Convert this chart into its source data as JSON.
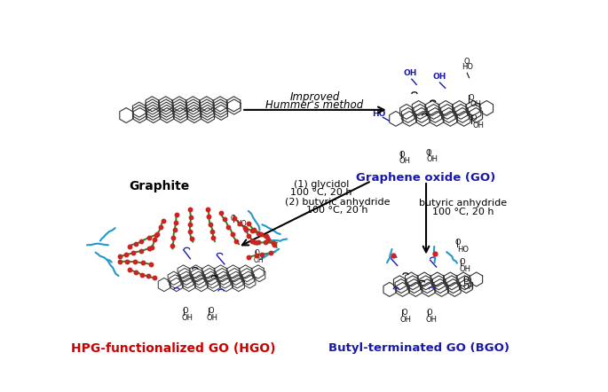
{
  "background_color": "#ffffff",
  "graphite_label": "Graphite",
  "go_label": "Graphene oxide (GO)",
  "hgo_label": "HPG-functionalized GO (HGO)",
  "bgo_label": "Butyl-terminated GO (BGO)",
  "arrow1_label1": "Improved",
  "arrow1_label2": "Hummer's method",
  "arrow2_label1": "(1) glycidol",
  "arrow2_label2": "100 °C, 20 h",
  "arrow2_label3": "(2) butyric anhydride",
  "arrow2_label4": "100 °C, 20 h",
  "arrow3_label1": "butyric anhydride",
  "arrow3_label2": "100 °C, 20 h",
  "go_color": "#1a1aaa",
  "hgo_color": "#cc0000",
  "bgo_color": "#1a1aaa",
  "green_chain_color": "#228822",
  "red_dot_color": "#cc2222",
  "cyan_chain_color": "#2299cc",
  "blue_group_color": "#1a1aaa",
  "black_color": "#111111"
}
